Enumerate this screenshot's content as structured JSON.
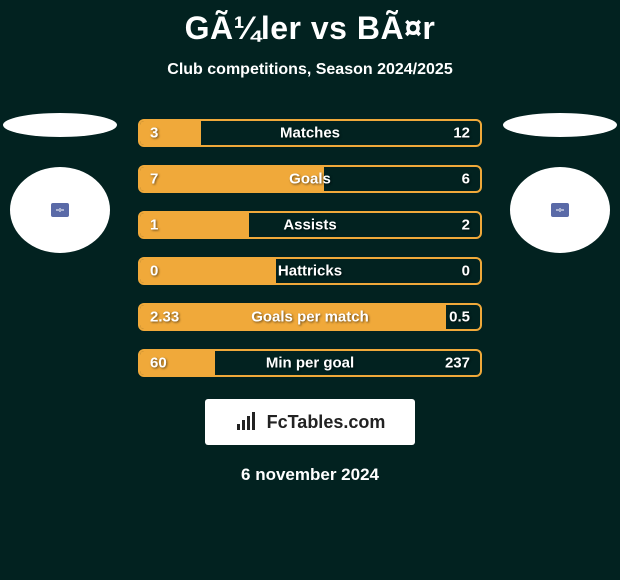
{
  "header": {
    "title": "GÃ¼ler vs BÃ¤r",
    "subtitle": "Club competitions, Season 2024/2025"
  },
  "players": {
    "left": {
      "mini_box_color": "#5a6aa7"
    },
    "right": {
      "mini_box_color": "#5a6aa7"
    }
  },
  "chart": {
    "border_color": "#f0a93a",
    "fill_color": "#f0a93a",
    "track_color": "#022220",
    "bars": [
      {
        "label": "Matches",
        "left": "3",
        "right": "12",
        "fill_pct": 18
      },
      {
        "label": "Goals",
        "left": "7",
        "right": "6",
        "fill_pct": 54
      },
      {
        "label": "Assists",
        "left": "1",
        "right": "2",
        "fill_pct": 32
      },
      {
        "label": "Hattricks",
        "left": "0",
        "right": "0",
        "fill_pct": 40
      },
      {
        "label": "Goals per match",
        "left": "2.33",
        "right": "0.5",
        "fill_pct": 90
      },
      {
        "label": "Min per goal",
        "left": "60",
        "right": "237",
        "fill_pct": 22
      }
    ]
  },
  "brand": {
    "text": "FcTables.com",
    "icon_color": "#222222"
  },
  "footer": {
    "date": "6 november 2024"
  }
}
